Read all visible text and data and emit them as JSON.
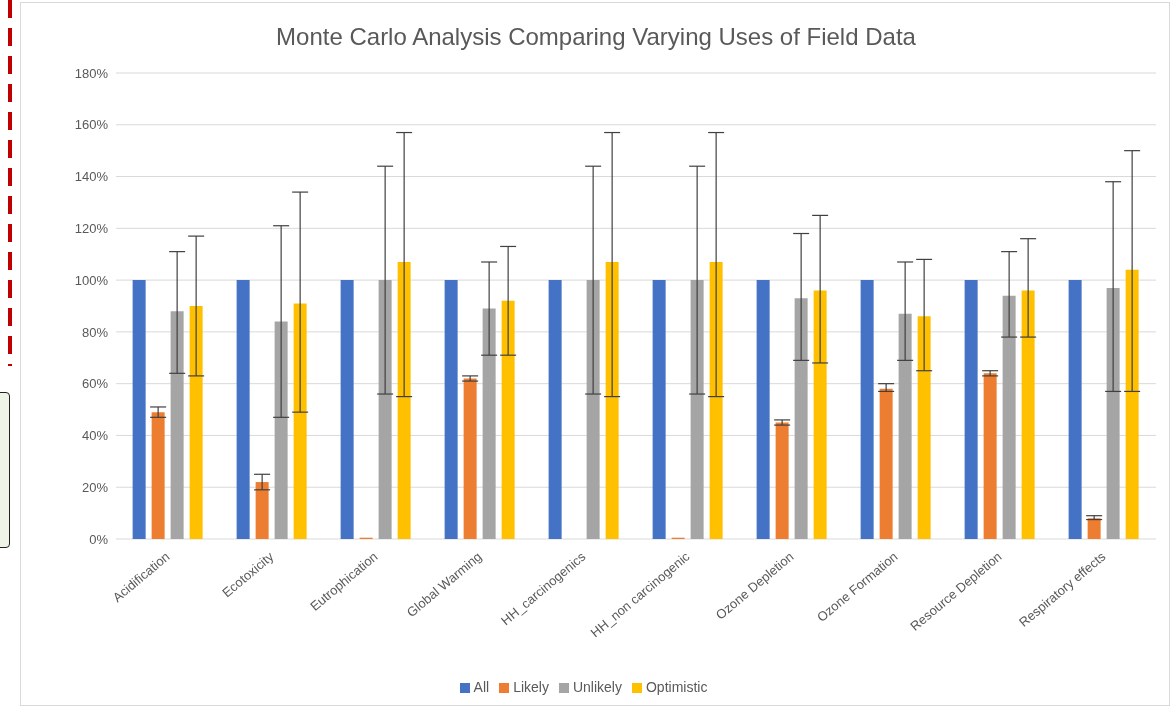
{
  "chart_data": {
    "type": "bar",
    "title": "Monte Carlo Analysis Comparing Varying Uses of Field Data",
    "categories": [
      "Acidification",
      "Ecotoxicity",
      "Eutrophication",
      "Global Warming",
      "HH_carcinogenics",
      "HH_non carcinogenic",
      "Ozone Depletion",
      "Ozone Formation",
      "Resource Depletion",
      "Respiratory effects"
    ],
    "series": [
      {
        "name": "All",
        "color": "#4472c4",
        "values": [
          100,
          100,
          100,
          100,
          100,
          100,
          100,
          100,
          100,
          100
        ]
      },
      {
        "name": "Likely",
        "color": "#ed7d31",
        "values": [
          49,
          22,
          0.5,
          62,
          0,
          0.5,
          45,
          58,
          64,
          8
        ],
        "errors": [
          [
            47,
            51
          ],
          [
            19,
            25
          ],
          null,
          [
            61,
            63
          ],
          null,
          null,
          [
            44,
            46
          ],
          [
            57,
            60
          ],
          [
            63,
            65
          ],
          [
            7.5,
            9
          ]
        ]
      },
      {
        "name": "Unlikely",
        "color": "#a5a5a5",
        "values": [
          88,
          84,
          100,
          89,
          100,
          100,
          93,
          87,
          94,
          97
        ],
        "errors": [
          [
            64,
            111
          ],
          [
            47,
            121
          ],
          [
            56,
            144
          ],
          [
            71,
            107
          ],
          [
            56,
            144
          ],
          [
            56,
            144
          ],
          [
            69,
            118
          ],
          [
            69,
            107
          ],
          [
            78,
            111
          ],
          [
            57,
            138
          ]
        ]
      },
      {
        "name": "Optimistic",
        "color": "#ffc000",
        "values": [
          90,
          91,
          107,
          92,
          107,
          107,
          96,
          86,
          96,
          104
        ],
        "errors": [
          [
            63,
            117
          ],
          [
            49,
            134
          ],
          [
            55,
            157
          ],
          [
            71,
            113
          ],
          [
            55,
            157
          ],
          [
            55,
            157
          ],
          [
            68,
            125
          ],
          [
            65,
            108
          ],
          [
            78,
            116
          ],
          [
            57,
            150
          ]
        ]
      }
    ],
    "ylim": [
      0,
      180
    ],
    "yticks": [
      {
        "value": 0,
        "label": "0%"
      },
      {
        "value": 20,
        "label": "20%"
      },
      {
        "value": 40,
        "label": "40%"
      },
      {
        "value": 60,
        "label": "60%"
      },
      {
        "value": 80,
        "label": "80%"
      },
      {
        "value": 100,
        "label": "100%"
      },
      {
        "value": 120,
        "label": "120%"
      },
      {
        "value": 140,
        "label": "140%"
      },
      {
        "value": 160,
        "label": "160%"
      },
      {
        "value": 180,
        "label": "180%"
      }
    ],
    "grid": "y",
    "legend": "bottom"
  }
}
